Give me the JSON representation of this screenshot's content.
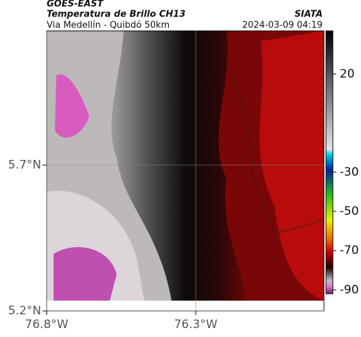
{
  "header": {
    "satellite": "GOES-EAST",
    "product": "Temperatura de Brillo CH13",
    "region": "Via Medellín - Quibdó 50km",
    "source": "SIATA",
    "timestamp": "2024-03-09 04:19"
  },
  "map": {
    "lat_range": [
      5.2,
      6.16
    ],
    "lon_range": [
      -76.8,
      -75.87
    ],
    "lat_ticks": [
      {
        "value": 5.7,
        "label": "5.7°N"
      },
      {
        "value": 5.2,
        "label": "5.2°N"
      }
    ],
    "lon_ticks": [
      {
        "value": -76.8,
        "label": "76.8°W"
      },
      {
        "value": -76.3,
        "label": "76.3°W"
      }
    ]
  },
  "colorbar": {
    "range": [
      -92,
      42
    ],
    "ticks": [
      20,
      -30,
      -50,
      -70,
      -90
    ]
  }
}
